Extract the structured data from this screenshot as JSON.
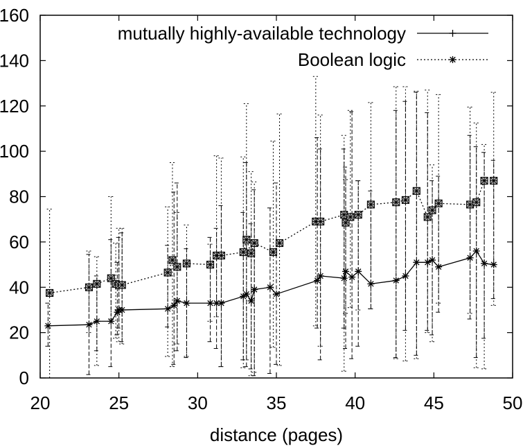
{
  "chart_data": {
    "type": "line",
    "title": "",
    "xlabel": "distance (pages)",
    "ylabel": "",
    "xlim": [
      20,
      50
    ],
    "ylim": [
      0,
      160
    ],
    "xticks": [
      20,
      25,
      30,
      35,
      40,
      45,
      50
    ],
    "yticks": [
      0,
      20,
      40,
      60,
      80,
      100,
      120,
      140,
      160
    ],
    "ytick_labels": [
      "0",
      "20",
      "40",
      "60",
      "80",
      "100",
      "120",
      "140",
      "160"
    ],
    "grid": false,
    "legend_position": "top-right",
    "series": [
      {
        "name": "mutually highly-available technology",
        "style": "solid",
        "marker": "+",
        "color": "#000000",
        "x": [
          20.5,
          23.1,
          23.6,
          24.5,
          24.9,
          25.0,
          25.2,
          28.1,
          28.5,
          28.7,
          29.3,
          30.8,
          31.2,
          31.5,
          32.9,
          33.1,
          33.4,
          33.6,
          34.6,
          35.0,
          37.6,
          37.8,
          39.3,
          39.4,
          39.8,
          40.2,
          41.0,
          42.6,
          43.2,
          43.9,
          44.6,
          44.9,
          45.3,
          47.3,
          47.7,
          48.2,
          48.8
        ],
        "y": [
          23,
          23.5,
          25,
          25,
          29,
          30,
          30,
          30.5,
          32,
          34,
          33,
          33,
          33,
          33,
          36,
          37,
          34,
          39,
          40,
          37,
          43,
          45,
          44,
          47,
          44.5,
          47,
          41.5,
          43,
          45,
          51,
          51,
          52,
          49,
          53,
          56,
          50.5,
          50
        ],
        "err_lo": [
          9,
          22,
          13,
          20,
          10,
          8,
          14,
          8,
          26,
          22,
          24,
          17,
          20,
          28,
          28,
          32,
          30,
          38,
          38,
          31,
          21,
          37,
          22,
          34,
          36,
          33,
          11,
          34,
          24,
          41,
          30,
          33,
          20,
          27,
          47,
          33,
          15
        ],
        "err_hi": [
          10,
          31,
          20,
          36,
          22,
          32,
          34,
          28,
          50,
          52,
          24,
          29,
          33,
          43,
          37,
          58,
          34,
          44,
          35,
          49,
          63,
          56,
          57,
          46,
          73,
          40,
          41,
          75,
          77,
          75,
          66,
          35,
          40,
          54,
          46,
          49,
          46
        ]
      },
      {
        "name": "Boolean logic",
        "style": "dotted",
        "marker": "boxed-x",
        "color": "#000000",
        "x": [
          20.6,
          23.1,
          23.6,
          24.5,
          24.8,
          25.0,
          25.2,
          28.1,
          28.4,
          28.7,
          29.3,
          30.8,
          31.2,
          31.5,
          32.9,
          33.1,
          33.4,
          33.6,
          34.8,
          35.2,
          37.5,
          37.8,
          39.3,
          39.4,
          39.7,
          40.2,
          41.0,
          42.6,
          43.2,
          43.9,
          44.6,
          44.9,
          45.3,
          47.3,
          47.7,
          48.2,
          48.8
        ],
        "y": [
          37.5,
          40,
          41.5,
          44,
          41.5,
          41,
          41,
          46.5,
          52,
          49,
          50.5,
          50,
          54,
          54,
          55.5,
          61,
          55,
          59.5,
          55.5,
          59.5,
          69,
          69,
          72,
          68.5,
          71,
          72,
          76.5,
          77.5,
          78.5,
          82.5,
          71,
          74,
          77,
          76.5,
          77.5,
          87,
          87
        ],
        "err_lo": [
          37.5,
          20,
          36,
          18,
          24,
          25,
          26,
          37,
          47,
          34,
          41,
          25,
          27,
          49,
          51,
          53,
          54,
          57,
          42,
          54,
          46,
          55,
          69,
          40,
          40,
          42,
          46,
          69,
          71,
          74,
          51,
          58,
          44,
          48,
          73,
          83,
          55
        ],
        "err_hi": [
          37,
          16,
          12,
          36,
          18,
          25,
          25,
          29,
          43,
          24,
          17,
          9,
          44,
          43,
          42,
          60,
          36,
          27,
          49,
          57,
          64,
          47,
          35,
          19,
          47,
          15,
          45,
          51,
          50,
          44,
          56,
          20,
          48,
          43,
          35,
          16,
          39
        ]
      }
    ]
  }
}
